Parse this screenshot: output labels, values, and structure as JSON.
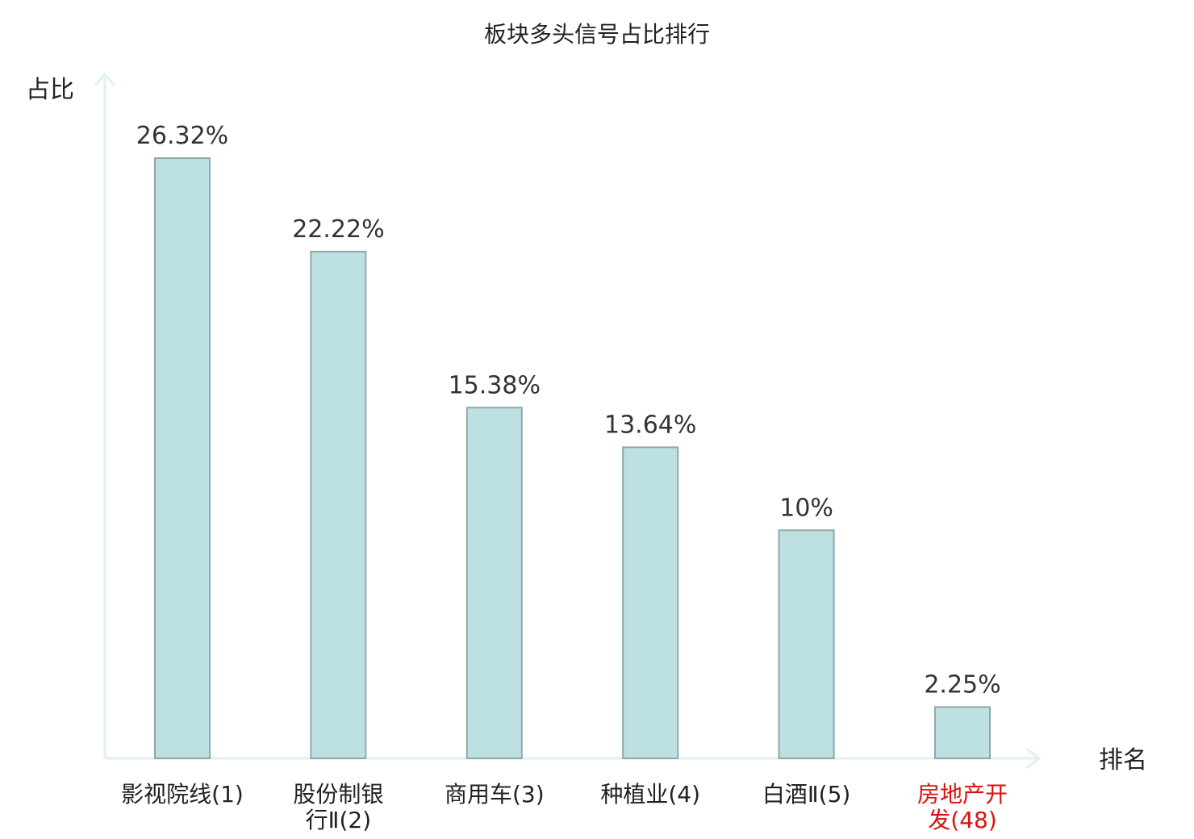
{
  "chart_data": {
    "type": "bar",
    "title": "板块多头信号占比排行",
    "ylabel": "占比",
    "xlabel": "排名",
    "ylim": [
      0,
      30
    ],
    "grid": false,
    "legend": "none",
    "categories": [
      {
        "lines": [
          "影视院线"
        ],
        "rank": "(1)",
        "highlight": false
      },
      {
        "lines": [
          "股份制银",
          "行Ⅱ"
        ],
        "rank": "(2)",
        "highlight": false
      },
      {
        "lines": [
          "商用车"
        ],
        "rank": "(3)",
        "highlight": false
      },
      {
        "lines": [
          "种植业"
        ],
        "rank": "(4)",
        "highlight": false
      },
      {
        "lines": [
          "白酒Ⅱ"
        ],
        "rank": "(5)",
        "highlight": false
      },
      {
        "lines": [
          "房地产开",
          "发"
        ],
        "rank": "(48)",
        "highlight": true
      }
    ],
    "values": [
      26.32,
      22.22,
      15.38,
      13.64,
      10,
      2.25
    ],
    "value_labels": [
      "26.32%",
      "22.22%",
      "15.38%",
      "13.64%",
      "10%",
      "2.25%"
    ]
  },
  "colors": {
    "bar_fill": "#bde0e3",
    "bar_stroke": "#8fa8a8",
    "axis": "#dff2ef",
    "text": "#222222",
    "highlight": "#dd1111"
  }
}
